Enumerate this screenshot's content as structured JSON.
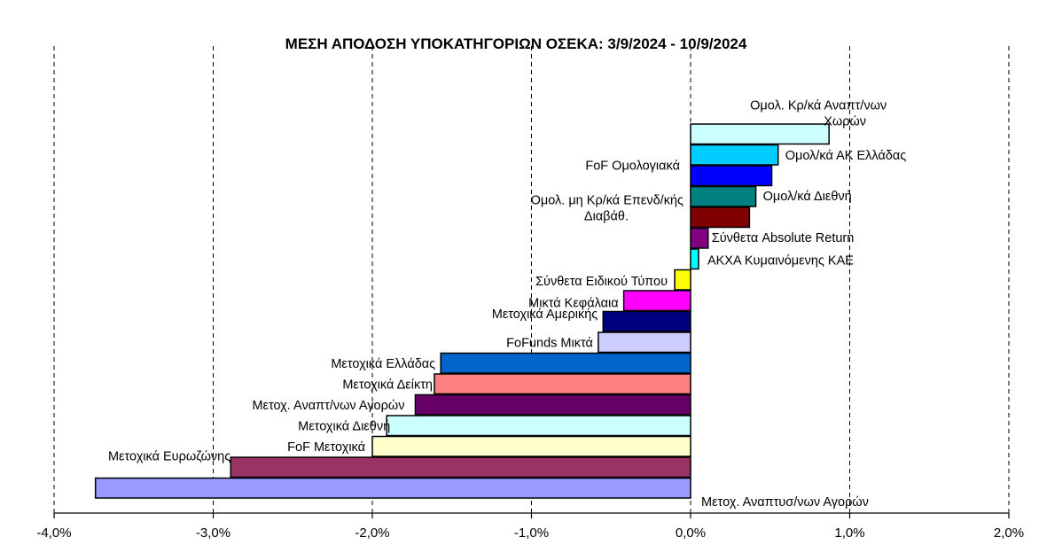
{
  "chart_data": {
    "type": "bar",
    "orientation": "horizontal",
    "title": "ΜΕΣΗ ΑΠΟΔΟΣΗ ΥΠΟΚΑΤΗΓΟΡΙΩΝ ΟΣΕΚΑ: 3/9/2024 - 10/9/2024",
    "xlabel": "",
    "ylabel": "",
    "xlim": [
      -4.0,
      2.0
    ],
    "x_ticks": [
      "-4,0%",
      "-3,0%",
      "-2,0%",
      "-1,0%",
      "0,0%",
      "1,0%",
      "2,0%"
    ],
    "x_tick_values": [
      -4.0,
      -3.0,
      -2.0,
      -1.0,
      0.0,
      1.0,
      2.0
    ],
    "grid": "vertical-dashed",
    "legend": "none",
    "categories": [
      {
        "label": [
          "Ομολ. Κρ/κά Αναπτ/νων",
          "Χωρών"
        ],
        "value": 0.87,
        "color": "#ccffff"
      },
      {
        "label": [
          "Ομολ/κά ΑΚ Ελλάδας"
        ],
        "value": 0.55,
        "color": "#00ccff"
      },
      {
        "label": [
          "FoF Ομολογιακά"
        ],
        "value": 0.51,
        "color": "#0000ff"
      },
      {
        "label": [
          "Ομολ/κά Διεθνή"
        ],
        "value": 0.41,
        "color": "#008080"
      },
      {
        "label": [
          "Ομολ. μη Κρ/κά Επενδ/κής",
          "Διαβάθ."
        ],
        "value": 0.37,
        "color": "#800000"
      },
      {
        "label": [
          "Σύνθετα Absolute Return"
        ],
        "value": 0.11,
        "color": "#800080"
      },
      {
        "label": [
          "ΑΚΧΑ Κυμαινόμενης  ΚΑΕ"
        ],
        "value": 0.05,
        "color": "#00ffff"
      },
      {
        "label": [
          "Σύνθετα Ειδικού Τύπου"
        ],
        "value": -0.1,
        "color": "#ffff00"
      },
      {
        "label": [
          "Μικτά Κεφάλαια"
        ],
        "value": -0.42,
        "color": "#ff00ff"
      },
      {
        "label": [
          "Μετοχικά Αμερικής"
        ],
        "value": -0.55,
        "color": "#000080"
      },
      {
        "label": [
          "FoFunds Μικτά"
        ],
        "value": -0.58,
        "color": "#ccccff"
      },
      {
        "label": [
          "Μετοχικά Ελλάδας"
        ],
        "value": -1.57,
        "color": "#0066cc"
      },
      {
        "label": [
          "Μετοχικά Δείκτη"
        ],
        "value": -1.61,
        "color": "#ff8080"
      },
      {
        "label": [
          "Μετοχ. Αναπτ/νων Αγορών"
        ],
        "value": -1.73,
        "color": "#660066"
      },
      {
        "label": [
          "Μετοχικά Διεθνή"
        ],
        "value": -1.91,
        "color": "#ccffff"
      },
      {
        "label": [
          "FoF Μετοχικά"
        ],
        "value": -2.0,
        "color": "#ffffcc"
      },
      {
        "label": [
          "Μετοχικά Ευρωζώνης"
        ],
        "value": -2.89,
        "color": "#993366"
      },
      {
        "label": [
          "Μετοχ. Αναπτυσ/νων Αγορών"
        ],
        "value": -3.74,
        "color": "#9999ff"
      }
    ]
  }
}
